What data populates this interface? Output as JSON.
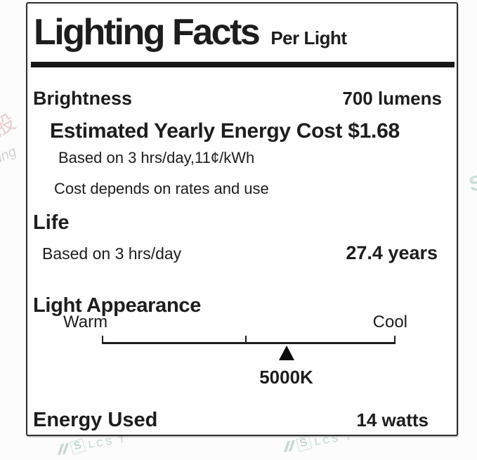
{
  "title": "Lighting Facts",
  "per_unit": "Per Light",
  "sections": {
    "brightness": {
      "label": "Brightness",
      "value": "700 lumens"
    },
    "energy_cost": {
      "heading": "Estimated Yearly Energy Cost $1.68",
      "basis": "Based on 3 hrs/day,11¢/kWh",
      "note": "Cost depends on rates and use"
    },
    "life": {
      "label": "Life",
      "basis": "Based on 3 hrs/day",
      "value": "27.4 years"
    },
    "light_appearance": {
      "label": "Light Appearance",
      "warm_label": "Warm",
      "cool_label": "Cool",
      "color_temp": "5000K",
      "marker_percent": 62.8
    },
    "energy_used": {
      "label": "Energy Used",
      "value": "14 watts"
    }
  },
  "watermarks": {
    "left_char": "股",
    "left_script": "ing",
    "right_char": "S",
    "bottom_left": {
      "s": "S",
      "text": "LCS T"
    },
    "bottom_right": {
      "s": "S",
      "text": "LCS T"
    }
  },
  "colors": {
    "ink": "#1d1d1d",
    "border": "#2e2e2e",
    "bg": "#fcfcfc",
    "watermark_teal": "#c6d6d2",
    "watermark_pink": "#e8c6c6"
  }
}
